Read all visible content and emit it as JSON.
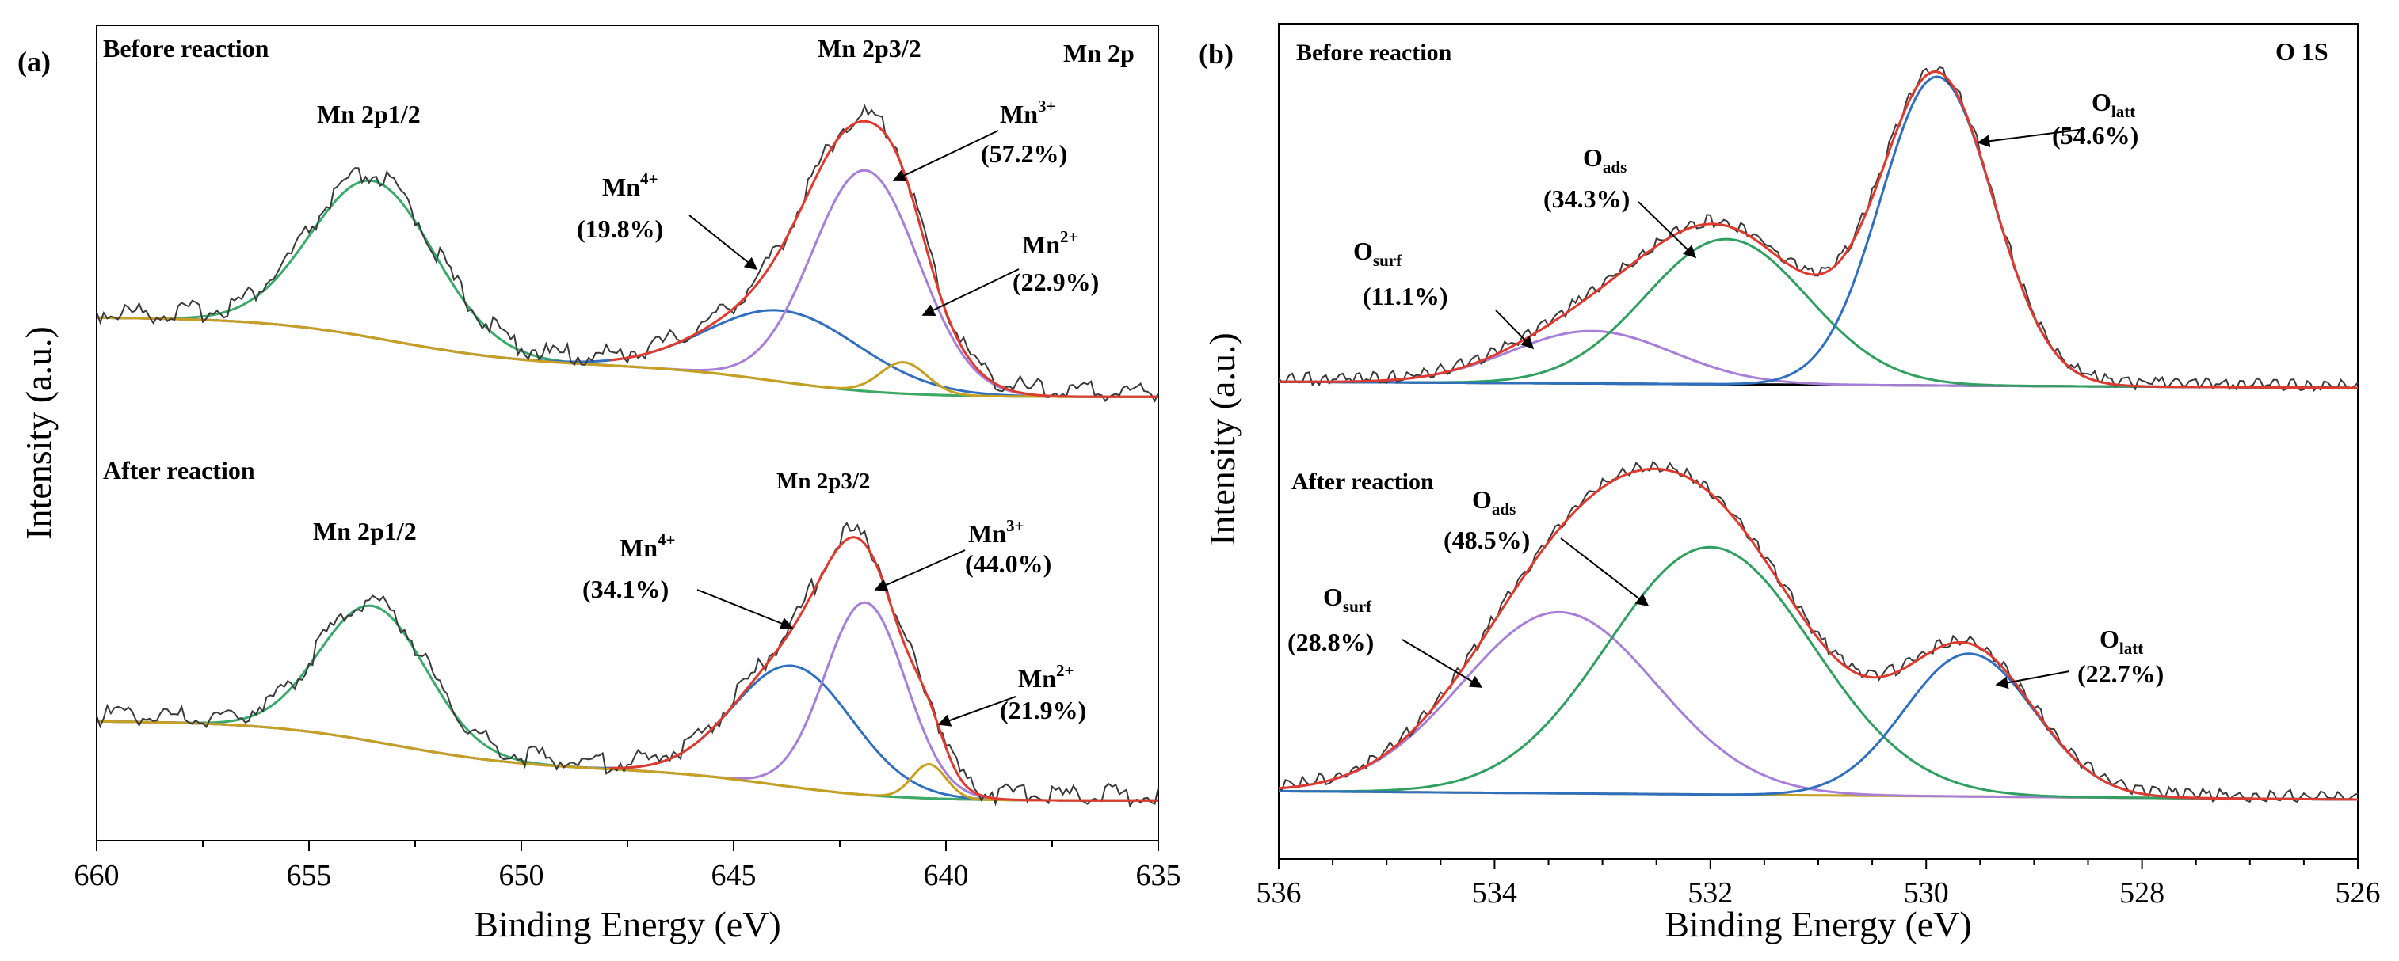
{
  "chart_data": [
    {
      "id": "a",
      "type": "line",
      "panel_label": "(a)",
      "title": "Mn 2p",
      "xlabel": "Binding Energy (eV)",
      "ylabel": "Intensity (a.u.)",
      "xlim": [
        660,
        635
      ],
      "x_ticks": [
        "660",
        "655",
        "650",
        "645",
        "640",
        "635"
      ],
      "sections": [
        {
          "name": "before",
          "title": "Before reaction",
          "peak_labels": [
            {
              "name": "mn2p12",
              "text": "Mn 2p1/2",
              "x": 653.5
            },
            {
              "name": "mn2p32",
              "text": "Mn 2p3/2",
              "x": 641.5
            }
          ],
          "components": [
            {
              "name": "Mn4+",
              "label_main": "Mn",
              "label_sup": "4+",
              "percent": "(19.8%)",
              "color": "#2f6fbf",
              "center": 643.8,
              "width": 1.8,
              "height": 0.5
            },
            {
              "name": "Mn3+",
              "label_main": "Mn",
              "label_sup": "3+",
              "percent": "(57.2%)",
              "color": "#a77fd8",
              "center": 641.9,
              "width": 1.25,
              "height": 1.55
            },
            {
              "name": "Mn2+",
              "label_main": "Mn",
              "label_sup": "2+",
              "percent": "(22.9%)",
              "color": "#c8a020",
              "center": 641.0,
              "width": 0.55,
              "height": 0.22
            }
          ],
          "p12": {
            "center": 653.5,
            "width": 1.45,
            "height": 1.1
          }
        },
        {
          "name": "after",
          "title": "After reaction",
          "peak_labels": [
            {
              "name": "mn2p12",
              "text": "Mn 2p1/2",
              "x": 653.5
            },
            {
              "name": "mn2p32",
              "text": "Mn 2p3/2",
              "x": 642.0
            }
          ],
          "components": [
            {
              "name": "Mn4+",
              "label_main": "Mn",
              "label_sup": "4+",
              "percent": "(34.1%)",
              "color": "#2f6fbf",
              "center": 643.6,
              "width": 1.4,
              "height": 0.85
            },
            {
              "name": "Mn3+",
              "label_main": "Mn",
              "label_sup": "3+",
              "percent": "(44.0%)",
              "color": "#a77fd8",
              "center": 641.9,
              "width": 0.95,
              "height": 1.35
            },
            {
              "name": "Mn2+",
              "label_main": "Mn",
              "label_sup": "2+",
              "percent": "(21.9%)",
              "color": "#c8a020",
              "center": 640.4,
              "width": 0.4,
              "height": 0.24
            }
          ],
          "p12": {
            "center": 653.5,
            "width": 1.25,
            "height": 0.95
          }
        }
      ],
      "line_colors": {
        "raw": "#3a3a3a",
        "fit": "#e03a2f",
        "envelope": "#3aaa6a",
        "background": "#c8a020"
      }
    },
    {
      "id": "b",
      "type": "line",
      "panel_label": "(b)",
      "title": "O 1S",
      "xlabel": "Binding Energy (eV)",
      "ylabel": "Intensity (a.u.)",
      "xlim": [
        536,
        526
      ],
      "x_ticks": [
        "536",
        "534",
        "532",
        "530",
        "528",
        "526"
      ],
      "sections": [
        {
          "name": "before",
          "title": "Before reaction",
          "components": [
            {
              "name": "Osurf",
              "label_main": "O",
              "label_sub": "surf",
              "percent": "(11.1%)",
              "color": "#a77fd8",
              "center": 533.1,
              "width": 0.75,
              "height": 0.17
            },
            {
              "name": "Oads",
              "label_main": "O",
              "label_sub": "ads",
              "percent": "(34.3%)",
              "color": "#2fa060",
              "center": 531.85,
              "width": 0.75,
              "height": 0.47
            },
            {
              "name": "Olatt",
              "label_main": "O",
              "label_sub": "latt",
              "percent": "(54.6%)",
              "color": "#2f6fbf",
              "center": 529.9,
              "width": 0.52,
              "height": 1.0
            }
          ]
        },
        {
          "name": "after",
          "title": "After reaction",
          "components": [
            {
              "name": "Osurf",
              "label_main": "O",
              "label_sub": "surf",
              "percent": "(28.8%)",
              "color": "#a77fd8",
              "center": 533.4,
              "width": 0.9,
              "height": 0.52
            },
            {
              "name": "Oads",
              "label_main": "O",
              "label_sub": "ads",
              "percent": "(48.5%)",
              "color": "#2fa060",
              "center": 532.0,
              "width": 0.95,
              "height": 0.71
            },
            {
              "name": "Olatt",
              "label_main": "O",
              "label_sub": "latt",
              "percent": "(22.7%)",
              "color": "#2f6fbf",
              "center": 529.6,
              "width": 0.6,
              "height": 0.41
            }
          ]
        }
      ],
      "line_colors": {
        "raw": "#3a3a3a",
        "fit": "#e03a2f",
        "background_before": "#000000",
        "background_after": "#c8a020"
      }
    }
  ]
}
